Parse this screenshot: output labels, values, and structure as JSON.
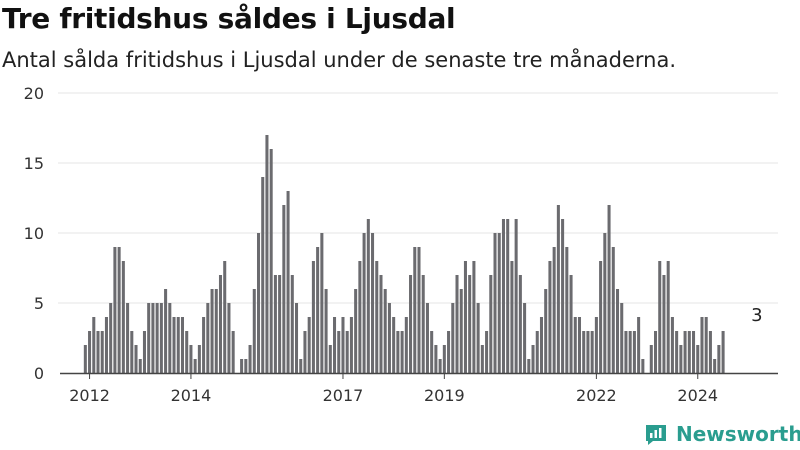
{
  "header": {
    "title": "Tre fritidshus såldes i Ljusdal",
    "subtitle": "Antal sålda fritidshus i Ljusdal under de senaste tre månaderna."
  },
  "brand": {
    "name": "Newsworthy",
    "icon": "newsworthy-logo-icon",
    "color": "#2a9d8f"
  },
  "colors": {
    "bar": "#6b6b6f",
    "highlight": "#2a9d8f",
    "grid": "#e6e6e6",
    "axis": "#444444"
  },
  "chart_data": {
    "type": "bar",
    "title": "Tre fritidshus såldes i Ljusdal",
    "subtitle": "Antal sålda fritidshus i Ljusdal under de senaste tre månaderna.",
    "xlabel": "",
    "ylabel": "",
    "ylim": [
      0,
      20
    ],
    "yticks": [
      0,
      5,
      10,
      15,
      20
    ],
    "xlim": [
      "2011-06",
      "2025-08"
    ],
    "xticks": [
      {
        "label": "2012",
        "x": "2012-01"
      },
      {
        "label": "2014",
        "x": "2014-01"
      },
      {
        "label": "2017",
        "x": "2017-01"
      },
      {
        "label": "2019",
        "x": "2019-01"
      },
      {
        "label": "2022",
        "x": "2022-01"
      },
      {
        "label": "2024",
        "x": "2024-01"
      }
    ],
    "grid": true,
    "legend": "none",
    "start_month": "2011-12",
    "values": [
      2,
      3,
      4,
      3,
      3,
      4,
      5,
      9,
      9,
      8,
      5,
      3,
      2,
      1,
      3,
      5,
      5,
      5,
      5,
      6,
      5,
      4,
      4,
      4,
      3,
      2,
      1,
      2,
      4,
      5,
      6,
      6,
      7,
      8,
      5,
      3,
      0,
      1,
      1,
      2,
      6,
      10,
      14,
      17,
      16,
      7,
      7,
      12,
      13,
      7,
      5,
      1,
      3,
      4,
      8,
      9,
      10,
      6,
      2,
      4,
      3,
      4,
      3,
      4,
      6,
      8,
      10,
      11,
      10,
      8,
      7,
      6,
      5,
      4,
      3,
      3,
      4,
      7,
      9,
      9,
      7,
      5,
      3,
      2,
      1,
      2,
      3,
      5,
      7,
      6,
      8,
      7,
      8,
      5,
      2,
      3,
      7,
      10,
      10,
      11,
      11,
      8,
      11,
      7,
      5,
      1,
      2,
      3,
      4,
      6,
      8,
      9,
      12,
      11,
      9,
      7,
      4,
      4,
      3,
      3,
      3,
      4,
      8,
      10,
      12,
      9,
      6,
      5,
      3,
      3,
      3,
      4,
      1,
      0,
      2,
      3,
      8,
      7,
      8,
      4,
      3,
      2,
      3,
      3,
      3,
      2,
      4,
      4,
      3,
      1,
      2,
      3
    ],
    "highlight": {
      "x": "2025-03",
      "value": 3,
      "label": "3"
    }
  }
}
